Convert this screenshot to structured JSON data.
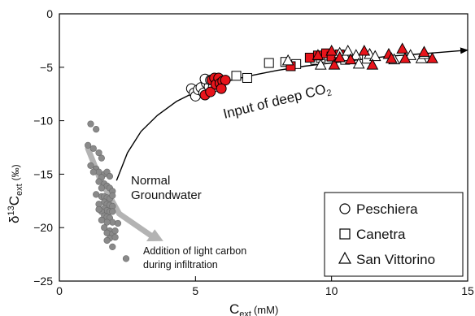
{
  "chart_data": {
    "type": "scatter",
    "xlabel": {
      "main": "C",
      "sub": "ext",
      "unit": "(mM)"
    },
    "ylabel": {
      "prefix": "δ",
      "sup": "13",
      "main": "C",
      "sub": "ext",
      "unit": "(‰)"
    },
    "xlim": [
      0,
      15
    ],
    "ylim": [
      -25,
      0
    ],
    "x_ticks": [
      "0",
      "5",
      "10",
      "15"
    ],
    "y_ticks": [
      "0",
      "-5",
      "-10",
      "-15",
      "-20",
      "-25"
    ],
    "grid": false,
    "legend_position": "bottom-right",
    "legend": [
      {
        "label": "Peschiera",
        "marker": "circle"
      },
      {
        "label": "Canetra",
        "marker": "square"
      },
      {
        "label": "San Vittorino",
        "marker": "triangle"
      }
    ],
    "annotations": {
      "deep_co2": {
        "text": "Input of deep CO",
        "sub": "2"
      },
      "normal": [
        "Normal",
        "Groundwater"
      ],
      "light": [
        "Addition of light carbon",
        "during infiltration"
      ]
    },
    "colors": {
      "red": "#e8141b",
      "gray": "#8a8a8a",
      "arrow_gray": "#b3b3b3",
      "black": "#000000"
    },
    "trend_curve": [
      [
        2.1,
        -15.6
      ],
      [
        2.5,
        -13.0
      ],
      [
        3.0,
        -11.0
      ],
      [
        3.6,
        -9.5
      ],
      [
        4.3,
        -8.2
      ],
      [
        5.0,
        -7.3
      ],
      [
        6.0,
        -6.4
      ],
      [
        7.0,
        -5.8
      ],
      [
        8.0,
        -5.3
      ],
      [
        9.0,
        -4.9
      ],
      [
        10.0,
        -4.6
      ],
      [
        11.0,
        -4.3
      ],
      [
        12.0,
        -4.0
      ],
      [
        13.0,
        -3.8
      ],
      [
        14.0,
        -3.6
      ],
      [
        15.0,
        -3.4
      ]
    ],
    "infiltration_arrow": [
      [
        1.05,
        -12.6
      ],
      [
        1.5,
        -15.5
      ],
      [
        2.2,
        -18.7
      ],
      [
        3.4,
        -20.8
      ]
    ],
    "series": [
      {
        "name": "Peschiera",
        "marker": "circle",
        "color": "white",
        "points": [
          [
            4.85,
            -7.0
          ],
          [
            4.95,
            -7.4
          ],
          [
            5.0,
            -7.7
          ],
          [
            5.1,
            -7.1
          ],
          [
            5.2,
            -6.9
          ],
          [
            5.3,
            -7.4
          ],
          [
            5.4,
            -6.5
          ],
          [
            5.5,
            -6.8
          ],
          [
            5.35,
            -6.1
          ],
          [
            5.55,
            -6.2
          ],
          [
            5.65,
            -6.9
          ]
        ]
      },
      {
        "name": "Peschiera",
        "marker": "circle",
        "color": "red",
        "points": [
          [
            5.35,
            -7.6
          ],
          [
            5.55,
            -7.3
          ],
          [
            5.6,
            -6.2
          ],
          [
            5.7,
            -6.0
          ],
          [
            5.75,
            -6.6
          ],
          [
            5.85,
            -6.0
          ],
          [
            5.9,
            -6.5
          ],
          [
            6.0,
            -6.3
          ],
          [
            6.1,
            -6.2
          ],
          [
            5.95,
            -7.0
          ]
        ]
      },
      {
        "name": "Canetra",
        "marker": "square",
        "color": "white",
        "points": [
          [
            6.5,
            -5.8
          ],
          [
            6.9,
            -6.0
          ],
          [
            7.7,
            -4.6
          ],
          [
            8.3,
            -4.5
          ],
          [
            8.7,
            -4.7
          ],
          [
            9.4,
            -4.3
          ],
          [
            9.6,
            -4.1
          ],
          [
            9.9,
            -3.9
          ],
          [
            10.2,
            -4.1
          ],
          [
            10.5,
            -4.3
          ],
          [
            11.3,
            -4.2
          ]
        ]
      },
      {
        "name": "Canetra",
        "marker": "square",
        "color": "red",
        "points": [
          [
            8.5,
            -4.9
          ],
          [
            9.2,
            -4.1
          ],
          [
            9.5,
            -3.9
          ],
          [
            9.8,
            -3.7
          ],
          [
            10.0,
            -4.0
          ],
          [
            10.3,
            -3.8
          ]
        ]
      },
      {
        "name": "San Vittorino",
        "marker": "triangle",
        "color": "white",
        "points": [
          [
            8.4,
            -4.4
          ],
          [
            9.6,
            -4.8
          ],
          [
            10.3,
            -3.7
          ],
          [
            10.5,
            -4.0
          ],
          [
            10.6,
            -3.5
          ],
          [
            10.9,
            -3.9
          ],
          [
            11.0,
            -4.7
          ],
          [
            11.4,
            -3.8
          ],
          [
            11.6,
            -4.0
          ],
          [
            12.3,
            -4.3
          ],
          [
            12.9,
            -3.9
          ],
          [
            13.3,
            -4.2
          ],
          [
            13.4,
            -3.8
          ]
        ]
      },
      {
        "name": "San Vittorino",
        "marker": "triangle",
        "color": "red",
        "points": [
          [
            9.5,
            -3.9
          ],
          [
            10.0,
            -3.5
          ],
          [
            10.1,
            -4.8
          ],
          [
            10.3,
            -4.1
          ],
          [
            10.7,
            -4.3
          ],
          [
            11.2,
            -3.5
          ],
          [
            11.5,
            -4.8
          ],
          [
            12.1,
            -3.8
          ],
          [
            12.2,
            -4.2
          ],
          [
            12.6,
            -3.3
          ],
          [
            12.7,
            -4.2
          ],
          [
            13.4,
            -3.6
          ],
          [
            13.7,
            -4.2
          ]
        ]
      },
      {
        "name": "Normal Groundwater",
        "marker": "dot",
        "color": "gray",
        "points": [
          [
            1.15,
            -10.3
          ],
          [
            1.35,
            -10.8
          ],
          [
            1.25,
            -12.6
          ],
          [
            1.45,
            -13.0
          ],
          [
            1.55,
            -13.5
          ],
          [
            1.05,
            -12.3
          ],
          [
            1.15,
            -14.2
          ],
          [
            1.35,
            -14.5
          ],
          [
            1.45,
            -14.8
          ],
          [
            1.65,
            -15.0
          ],
          [
            1.55,
            -15.3
          ],
          [
            1.75,
            -14.8
          ],
          [
            1.85,
            -15.2
          ],
          [
            1.25,
            -14.8
          ],
          [
            1.45,
            -15.7
          ],
          [
            1.65,
            -15.9
          ],
          [
            1.75,
            -16.1
          ],
          [
            1.55,
            -16.3
          ],
          [
            1.85,
            -16.3
          ],
          [
            1.95,
            -16.6
          ],
          [
            1.35,
            -16.9
          ],
          [
            1.55,
            -17.1
          ],
          [
            1.65,
            -17.1
          ],
          [
            1.75,
            -17.2
          ],
          [
            1.85,
            -17.3
          ],
          [
            1.65,
            -17.6
          ],
          [
            1.45,
            -17.8
          ],
          [
            1.75,
            -17.8
          ],
          [
            1.85,
            -17.9
          ],
          [
            1.95,
            -18.0
          ],
          [
            1.65,
            -18.2
          ],
          [
            1.75,
            -18.4
          ],
          [
            1.55,
            -18.5
          ],
          [
            1.85,
            -18.5
          ],
          [
            1.95,
            -18.5
          ],
          [
            1.65,
            -18.9
          ],
          [
            1.75,
            -19.0
          ],
          [
            1.85,
            -19.1
          ],
          [
            1.95,
            -19.5
          ],
          [
            1.75,
            -19.5
          ],
          [
            1.65,
            -20.0
          ],
          [
            1.85,
            -20.3
          ],
          [
            1.75,
            -20.5
          ],
          [
            1.95,
            -20.6
          ],
          [
            2.05,
            -20.3
          ],
          [
            1.85,
            -21.0
          ],
          [
            1.75,
            -21.2
          ],
          [
            1.95,
            -21.8
          ],
          [
            2.45,
            -22.9
          ],
          [
            2.15,
            -19.6
          ],
          [
            2.05,
            -20.9
          ],
          [
            1.55,
            -19.3
          ],
          [
            1.45,
            -18.3
          ],
          [
            1.95,
            -17.0
          ]
        ]
      }
    ]
  }
}
